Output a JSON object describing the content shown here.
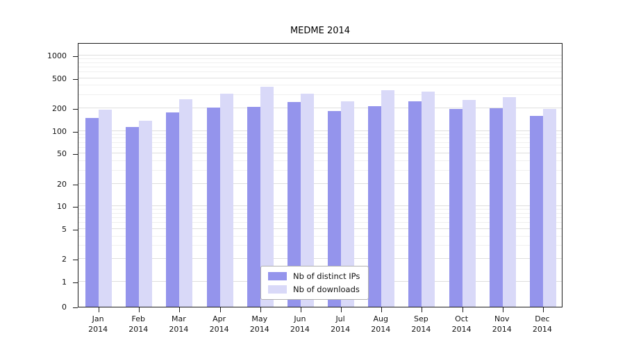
{
  "chart_data": {
    "type": "bar",
    "title": "MEDME 2014",
    "categories": [
      "Jan 2014",
      "Feb 2014",
      "Mar 2014",
      "Apr 2014",
      "May 2014",
      "Jun 2014",
      "Jul 2014",
      "Aug 2014",
      "Sep 2014",
      "Oct 2014",
      "Nov 2014",
      "Dec 2014"
    ],
    "series": [
      {
        "name": "Nb of distinct IPs",
        "color": "#9494ec",
        "values": [
          148,
          112,
          175,
          205,
          210,
          240,
          185,
          215,
          245,
          197,
          200,
          160
        ]
      },
      {
        "name": "Nb of downloads",
        "color": "#d9d9f8",
        "values": [
          190,
          138,
          265,
          310,
          385,
          310,
          250,
          350,
          330,
          260,
          280,
          198
        ]
      }
    ],
    "y_ticks": [
      0,
      1,
      2,
      5,
      10,
      20,
      50,
      100,
      200,
      500,
      1000
    ],
    "y_minor_ticks": [
      3,
      4,
      6,
      7,
      8,
      9,
      30,
      40,
      60,
      70,
      80,
      90,
      300,
      400,
      600,
      700,
      800,
      900
    ],
    "scale": "symlog",
    "ylim": [
      0,
      1500
    ],
    "grid": true,
    "legend_position": "lower-center",
    "xlabel": "",
    "ylabel": ""
  }
}
